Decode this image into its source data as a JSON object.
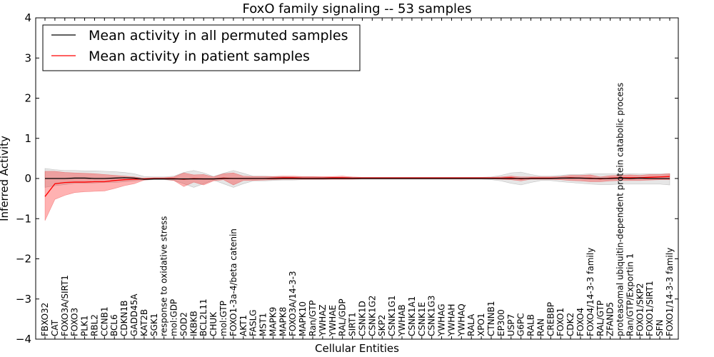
{
  "chart_data": {
    "type": "line",
    "title": "FoxO family signaling -- 53 samples",
    "xlabel": "Cellular Entities",
    "ylabel": "Inferred Activity",
    "ylim": [
      -4,
      4
    ],
    "yticks": [
      -4,
      -3,
      -2,
      -1,
      0,
      1,
      2,
      3,
      4
    ],
    "ytick_labels": [
      "−4",
      "−3",
      "−2",
      "−1",
      "0",
      "1",
      "2",
      "3",
      "4"
    ],
    "grid": false,
    "legend_position": "top-left",
    "categories": [
      "FBXO32",
      "CAT",
      "FOXO3A/SIRT1",
      "FOXO3",
      "PLK1",
      "RBL2",
      "CCNB1",
      "BCL6",
      "CDKN1B",
      "GADD45A",
      "KAT2B",
      "SGK1",
      "response to oxidative stress",
      "mol:GDP",
      "SOD2",
      "IKBKB",
      "BCL2L11",
      "CHUK",
      "mol:GTP",
      "FOXO1-3a-4/beta catenin",
      "AKT1",
      "FASLG",
      "MST1",
      "MAPK9",
      "MAPK8",
      "FOXO3A/14-3-3",
      "MAPK10",
      "Ran/GTP",
      "YWHAZ",
      "YWHAE",
      "RAL/GDP",
      "SIRT1",
      "CSNK1D",
      "CSNK1G2",
      "SKP2",
      "CSNK1G1",
      "YWHAB",
      "CSNK1A1",
      "CSNK1E",
      "CSNK1G3",
      "YWHAG",
      "YWHAH",
      "YWHAQ",
      "RALA",
      "XPO1",
      "CTNNB1",
      "EP300",
      "USP7",
      "G6PC",
      "RALB",
      "RAN",
      "CREBBP",
      "FOXO1",
      "CDK2",
      "FOXO4",
      "FOXO4/14-3-3 family",
      "RAL/GTP",
      "ZFAND5",
      "proteasomal ubiquitin-dependent protein catabolic process",
      "Ran/GTP/Exportin 1",
      "FOXO1/SKP2",
      "FOXO1/SIRT1",
      "SFN",
      "FOXO1/14-3-3 family"
    ],
    "series": [
      {
        "name": "Mean activity in all permuted samples",
        "color": "#000000",
        "values": [
          0,
          0,
          0,
          0.01,
          0.01,
          0,
          0,
          0.01,
          0.02,
          0.01,
          -0.02,
          -0.01,
          -0.01,
          -0.01,
          -0.01,
          -0.01,
          -0.01,
          -0.01,
          0,
          0,
          0,
          0,
          0,
          0,
          0,
          0,
          0,
          0,
          0,
          0,
          0,
          0,
          0,
          0,
          0,
          0,
          0,
          0,
          0,
          0,
          0,
          0,
          0,
          0,
          0,
          0,
          0,
          0,
          0,
          0,
          0,
          0,
          0.01,
          0.01,
          0.01,
          0,
          0,
          0,
          0.01,
          0,
          0.01,
          0,
          0,
          0
        ],
        "band_low": [
          -0.22,
          -0.18,
          -0.15,
          -0.12,
          -0.12,
          -0.11,
          -0.1,
          -0.1,
          -0.08,
          -0.06,
          -0.04,
          -0.03,
          -0.03,
          -0.05,
          -0.13,
          -0.22,
          -0.13,
          -0.04,
          -0.13,
          -0.22,
          -0.13,
          -0.06,
          -0.06,
          -0.05,
          -0.04,
          -0.04,
          -0.03,
          -0.03,
          -0.03,
          -0.02,
          -0.02,
          -0.02,
          -0.02,
          -0.02,
          -0.02,
          -0.02,
          -0.02,
          -0.02,
          -0.02,
          -0.02,
          -0.02,
          -0.02,
          -0.02,
          -0.02,
          -0.02,
          -0.03,
          -0.06,
          -0.12,
          -0.16,
          -0.1,
          -0.05,
          -0.05,
          -0.08,
          -0.1,
          -0.12,
          -0.14,
          -0.15,
          -0.15,
          -0.14,
          -0.14,
          -0.14,
          -0.14,
          -0.14,
          -0.16
        ],
        "band_high": [
          0.25,
          0.22,
          0.2,
          0.2,
          0.19,
          0.19,
          0.18,
          0.17,
          0.15,
          0.12,
          0.05,
          0.04,
          0.04,
          0.06,
          0.15,
          0.2,
          0.14,
          0.05,
          0.13,
          0.2,
          0.13,
          0.06,
          0.06,
          0.05,
          0.05,
          0.04,
          0.04,
          0.04,
          0.03,
          0.03,
          0.03,
          0.03,
          0.03,
          0.03,
          0.03,
          0.03,
          0.03,
          0.03,
          0.03,
          0.03,
          0.03,
          0.03,
          0.03,
          0.03,
          0.03,
          0.04,
          0.08,
          0.14,
          0.16,
          0.1,
          0.06,
          0.06,
          0.08,
          0.1,
          0.1,
          0.12,
          0.12,
          0.12,
          0.12,
          0.12,
          0.11,
          0.12,
          0.12,
          0.12
        ]
      },
      {
        "name": "Mean activity in patient samples",
        "color": "#ff0000",
        "values": [
          -0.45,
          -0.13,
          -0.1,
          -0.09,
          -0.09,
          -0.08,
          -0.08,
          -0.05,
          -0.03,
          -0.02,
          -0.01,
          0,
          0,
          0,
          -0.02,
          0,
          -0.01,
          -0.01,
          0.01,
          0,
          0,
          0,
          0,
          0.01,
          0.02,
          0.02,
          0.01,
          0.01,
          0.01,
          0.02,
          0.02,
          0.01,
          0.01,
          0.01,
          0.01,
          0.01,
          0.01,
          0.01,
          0.01,
          0.01,
          0.01,
          0.01,
          0.01,
          0.01,
          0.01,
          0.01,
          0.01,
          0.02,
          -0.01,
          0.01,
          0.01,
          0.01,
          0.01,
          0.02,
          0.01,
          0.01,
          -0.01,
          0.01,
          0.02,
          0.02,
          0.02,
          0.03,
          0.04,
          0.05
        ],
        "band_low": [
          -1.05,
          -0.52,
          -0.42,
          -0.35,
          -0.33,
          -0.32,
          -0.31,
          -0.25,
          -0.18,
          -0.13,
          -0.04,
          -0.02,
          -0.02,
          -0.05,
          -0.2,
          -0.09,
          -0.16,
          -0.06,
          -0.03,
          -0.16,
          -0.05,
          -0.05,
          -0.04,
          -0.03,
          -0.02,
          -0.02,
          -0.02,
          -0.02,
          -0.02,
          -0.02,
          -0.02,
          -0.02,
          -0.01,
          -0.01,
          -0.01,
          -0.01,
          -0.01,
          -0.01,
          -0.01,
          -0.01,
          -0.01,
          -0.01,
          -0.01,
          -0.01,
          -0.01,
          -0.01,
          -0.02,
          -0.03,
          -0.06,
          -0.02,
          -0.02,
          -0.02,
          -0.03,
          -0.05,
          -0.06,
          -0.08,
          -0.08,
          -0.06,
          -0.05,
          -0.05,
          -0.05,
          -0.04,
          -0.03,
          -0.03
        ],
        "band_high": [
          0.18,
          0.18,
          0.15,
          0.14,
          0.13,
          0.12,
          0.1,
          0.08,
          0.06,
          0.04,
          0.01,
          0.02,
          0.02,
          0.04,
          0.14,
          0.09,
          0.1,
          0.04,
          0.12,
          0.14,
          0.06,
          0.05,
          0.05,
          0.05,
          0.06,
          0.06,
          0.05,
          0.05,
          0.05,
          0.05,
          0.06,
          0.04,
          0.03,
          0.03,
          0.03,
          0.03,
          0.03,
          0.03,
          0.03,
          0.03,
          0.03,
          0.03,
          0.03,
          0.03,
          0.03,
          0.03,
          0.04,
          0.06,
          0.04,
          0.04,
          0.04,
          0.04,
          0.05,
          0.08,
          0.08,
          0.09,
          0.04,
          0.07,
          0.08,
          0.09,
          0.08,
          0.1,
          0.1,
          0.12
        ]
      }
    ]
  }
}
